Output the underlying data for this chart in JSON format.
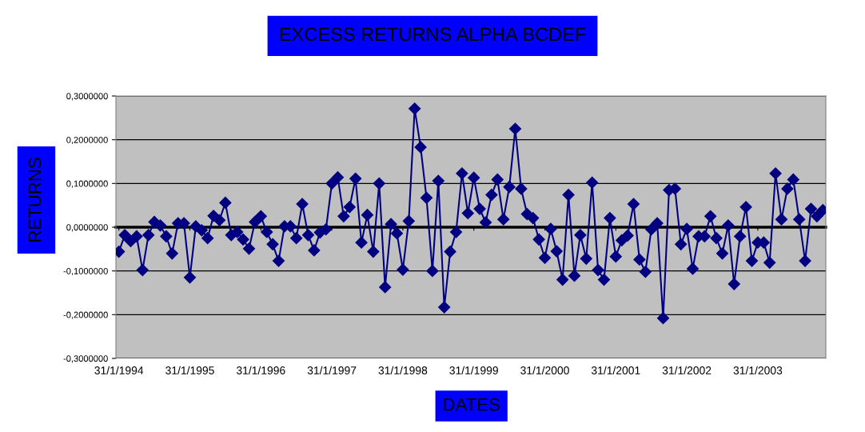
{
  "chart_data": {
    "type": "line",
    "title": "EXCESS RETURNS ALPHA BCDEF",
    "xlabel": "DATES",
    "ylabel": "RETURNS",
    "categories": [
      "31/1/1994",
      null,
      null,
      null,
      null,
      null,
      null,
      null,
      null,
      null,
      null,
      null,
      "31/1/1995",
      null,
      null,
      null,
      null,
      null,
      null,
      null,
      null,
      null,
      null,
      null,
      "31/1/1996",
      null,
      null,
      null,
      null,
      null,
      null,
      null,
      null,
      null,
      null,
      null,
      "31/1/1997",
      null,
      null,
      null,
      null,
      null,
      null,
      null,
      null,
      null,
      null,
      null,
      "31/1/1998",
      null,
      null,
      null,
      null,
      null,
      null,
      null,
      null,
      null,
      null,
      null,
      "31/1/1999",
      null,
      null,
      null,
      null,
      null,
      null,
      null,
      null,
      null,
      null,
      null,
      "31/1/2000",
      null,
      null,
      null,
      null,
      null,
      null,
      null,
      null,
      null,
      null,
      null,
      "31/1/2001",
      null,
      null,
      null,
      null,
      null,
      null,
      null,
      null,
      null,
      null,
      null,
      "31/1/2002",
      null,
      null,
      null,
      null,
      null,
      null,
      null,
      null,
      null,
      null,
      null,
      "31/1/2003",
      null,
      null,
      null,
      null,
      null,
      null,
      null,
      null,
      null,
      null,
      null
    ],
    "series": [
      {
        "color": "#000080",
        "values": [
          -0.056,
          -0.018,
          -0.032,
          -0.021,
          -0.098,
          -0.018,
          0.012,
          0.004,
          -0.021,
          -0.06,
          0.009,
          0.009,
          -0.115,
          0.002,
          -0.007,
          -0.025,
          0.026,
          0.016,
          0.056,
          -0.018,
          -0.011,
          -0.028,
          -0.049,
          0.012,
          0.025,
          -0.011,
          -0.039,
          -0.077,
          0.002,
          0.002,
          -0.025,
          0.053,
          -0.018,
          -0.053,
          -0.012,
          -0.005,
          0.1,
          0.114,
          0.025,
          0.046,
          0.111,
          -0.035,
          0.028,
          -0.056,
          0.1,
          -0.137,
          0.007,
          -0.014,
          -0.097,
          0.014,
          0.271,
          0.183,
          0.067,
          -0.1,
          0.106,
          -0.183,
          -0.056,
          -0.011,
          0.123,
          0.032,
          0.113,
          0.042,
          0.011,
          0.074,
          0.109,
          0.018,
          0.092,
          0.225,
          0.088,
          0.03,
          0.021,
          -0.028,
          -0.07,
          -0.004,
          -0.055,
          -0.12,
          0.074,
          -0.111,
          -0.018,
          -0.072,
          0.102,
          -0.098,
          -0.12,
          0.021,
          -0.067,
          -0.03,
          -0.019,
          0.053,
          -0.074,
          -0.102,
          -0.005,
          0.009,
          -0.208,
          0.085,
          0.088,
          -0.039,
          -0.004,
          -0.095,
          -0.021,
          -0.021,
          0.025,
          -0.025,
          -0.06,
          0.004,
          -0.13,
          -0.021,
          0.046,
          -0.077,
          -0.035,
          -0.035,
          -0.081,
          0.123,
          0.018,
          0.088,
          0.109,
          0.018,
          -0.077,
          0.042,
          0.025,
          0.039
        ]
      }
    ],
    "ylim": [
      -0.3,
      0.3
    ],
    "yticks": [
      {
        "value": -0.3,
        "label": "-0,3000000"
      },
      {
        "value": -0.2,
        "label": "-0,2000000"
      },
      {
        "value": -0.1,
        "label": "-0,1000000"
      },
      {
        "value": 0,
        "label": "0,0000000"
      },
      {
        "value": 0.1,
        "label": "0,1000000"
      },
      {
        "value": 0.2,
        "label": "0,2000000"
      },
      {
        "value": 0.3,
        "label": "0,3000000"
      }
    ],
    "grid": "y",
    "marker": "diamond",
    "line_style": "solid"
  }
}
